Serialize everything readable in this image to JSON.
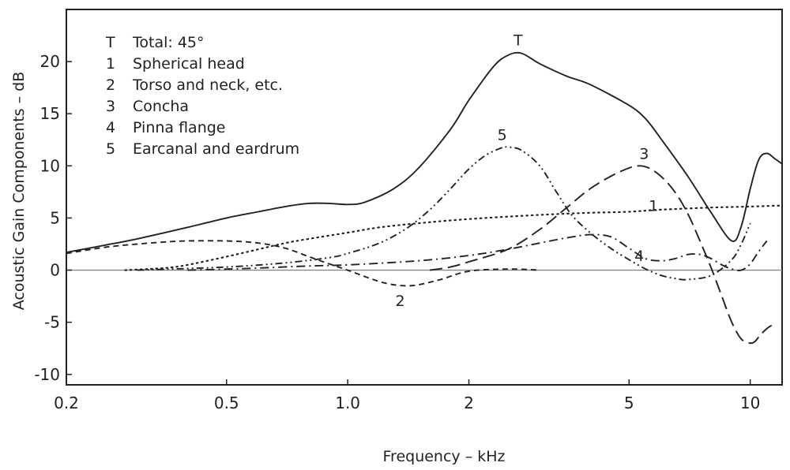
{
  "chart_data": {
    "type": "line",
    "title": "",
    "xlabel": "Frequency – kHz",
    "ylabel": "Acoustic Gain Components – dB",
    "xscale": "log",
    "xlim": [
      0.2,
      12
    ],
    "ylim": [
      -11,
      25
    ],
    "x_ticks": [
      {
        "value": 0.2,
        "label": "0.2"
      },
      {
        "value": 0.5,
        "label": "0.5"
      },
      {
        "value": 1.0,
        "label": "1.0"
      },
      {
        "value": 2,
        "label": "2"
      },
      {
        "value": 5,
        "label": "5"
      },
      {
        "value": 10,
        "label": "10"
      }
    ],
    "y_ticks": [
      {
        "value": 20,
        "label": "20"
      },
      {
        "value": 15,
        "label": "15"
      },
      {
        "value": 10,
        "label": "10"
      },
      {
        "value": 5,
        "label": "5"
      },
      {
        "value": 0,
        "label": "0"
      },
      {
        "value": -5,
        "label": "-5"
      },
      {
        "value": -10,
        "label": "-10"
      }
    ],
    "grid": false,
    "legend_position": "top-left",
    "legend": [
      {
        "key": "T",
        "text": "Total: 45°"
      },
      {
        "key": "1",
        "text": "Spherical head"
      },
      {
        "key": "2",
        "text": "Torso and neck, etc."
      },
      {
        "key": "3",
        "text": "Concha"
      },
      {
        "key": "4",
        "text": "Pinna flange"
      },
      {
        "key": "5",
        "text": "Earcanal and eardrum"
      }
    ],
    "series": [
      {
        "name": "Total: 45°",
        "label": "T",
        "dash": "solid",
        "label_at": [
          2.65,
          22.1
        ],
        "x": [
          0.2,
          0.25,
          0.3,
          0.4,
          0.5,
          0.6,
          0.7,
          0.8,
          0.9,
          1.0,
          1.1,
          1.3,
          1.5,
          1.8,
          2.0,
          2.3,
          2.5,
          2.7,
          3.0,
          3.5,
          4.0,
          5.0,
          5.5,
          6.0,
          7.0,
          8.0,
          9.0,
          9.5,
          10.0,
          10.5,
          11.0,
          11.5,
          12.0
        ],
        "y": [
          1.7,
          2.4,
          3.0,
          4.1,
          5.0,
          5.6,
          6.1,
          6.4,
          6.4,
          6.3,
          6.5,
          7.8,
          9.8,
          13.5,
          16.3,
          19.5,
          20.6,
          20.8,
          19.8,
          18.6,
          17.8,
          15.8,
          14.5,
          12.6,
          9.0,
          5.5,
          2.8,
          4.2,
          7.8,
          10.6,
          11.2,
          10.7,
          10.2
        ]
      },
      {
        "name": "Spherical head",
        "label": "1",
        "dash": "dotted",
        "label_at": [
          5.75,
          6.2
        ],
        "x": [
          0.28,
          0.35,
          0.4,
          0.5,
          0.6,
          0.7,
          0.8,
          1.0,
          1.2,
          1.5,
          2.0,
          3.0,
          4.0,
          5.0,
          6.0,
          8.0,
          10.0,
          12.0
        ],
        "y": [
          0.0,
          0.2,
          0.5,
          1.3,
          2.0,
          2.6,
          3.0,
          3.6,
          4.1,
          4.5,
          4.9,
          5.3,
          5.5,
          5.6,
          5.8,
          6.0,
          6.1,
          6.2
        ]
      },
      {
        "name": "Torso and neck, etc.",
        "label": "2",
        "dash": "dashed",
        "label_at": [
          1.35,
          -2.9
        ],
        "x": [
          0.2,
          0.25,
          0.3,
          0.35,
          0.4,
          0.5,
          0.6,
          0.7,
          0.8,
          0.9,
          1.0,
          1.1,
          1.2,
          1.3,
          1.4,
          1.5,
          1.7,
          2.0,
          2.5,
          3.0
        ],
        "y": [
          1.6,
          2.2,
          2.5,
          2.7,
          2.8,
          2.8,
          2.6,
          2.1,
          1.3,
          0.6,
          0.0,
          -0.6,
          -1.1,
          -1.4,
          -1.5,
          -1.4,
          -0.9,
          -0.1,
          0.1,
          0.0
        ]
      },
      {
        "name": "Concha",
        "label": "3",
        "dash": "long-dash",
        "label_at": [
          5.45,
          11.2
        ],
        "x": [
          1.6,
          1.8,
          2.0,
          2.5,
          3.0,
          3.5,
          4.0,
          4.5,
          5.0,
          5.3,
          5.6,
          6.0,
          6.5,
          7.0,
          7.5,
          8.0,
          8.5,
          9.0,
          9.5,
          10.0,
          10.3,
          10.6,
          11.0,
          11.3
        ],
        "y": [
          0.0,
          0.3,
          0.8,
          2.0,
          3.9,
          6.0,
          7.8,
          9.0,
          9.8,
          10.0,
          9.8,
          9.0,
          7.5,
          5.4,
          2.8,
          0.2,
          -2.5,
          -5.0,
          -6.6,
          -7.0,
          -6.8,
          -6.2,
          -5.6,
          -5.3
        ]
      },
      {
        "name": "Pinna flange",
        "label": "4",
        "dash": "dash-dot",
        "label_at": [
          5.3,
          1.4
        ],
        "x": [
          0.4,
          0.5,
          0.6,
          0.8,
          1.0,
          1.5,
          2.0,
          2.5,
          3.0,
          3.5,
          4.0,
          4.5,
          5.0,
          5.5,
          6.0,
          6.5,
          7.0,
          7.5,
          8.0,
          8.5,
          9.0,
          9.5,
          10.0,
          10.5,
          11.0
        ],
        "y": [
          0.0,
          0.1,
          0.2,
          0.4,
          0.5,
          0.9,
          1.4,
          2.0,
          2.6,
          3.1,
          3.4,
          3.2,
          2.1,
          1.1,
          0.9,
          1.1,
          1.5,
          1.5,
          1.1,
          0.5,
          0.1,
          0.0,
          0.6,
          1.8,
          2.8
        ]
      },
      {
        "name": "Earcanal and eardrum",
        "label": "5",
        "dash": "dash-dot-dot",
        "label_at": [
          2.42,
          13.0
        ],
        "x": [
          0.3,
          0.5,
          0.7,
          0.9,
          1.0,
          1.2,
          1.4,
          1.6,
          1.8,
          2.0,
          2.2,
          2.4,
          2.5,
          2.7,
          3.0,
          3.3,
          3.6,
          4.0,
          4.5,
          5.0,
          5.5,
          6.0,
          6.5,
          7.0,
          8.0,
          9.0,
          9.5,
          10.0
        ],
        "y": [
          0.0,
          0.3,
          0.7,
          1.2,
          1.6,
          2.6,
          4.0,
          5.8,
          7.8,
          9.7,
          11.0,
          11.7,
          11.8,
          11.5,
          10.0,
          7.5,
          5.3,
          3.6,
          2.1,
          1.0,
          0.1,
          -0.5,
          -0.8,
          -0.9,
          -0.5,
          1.0,
          2.5,
          4.5
        ]
      }
    ]
  }
}
